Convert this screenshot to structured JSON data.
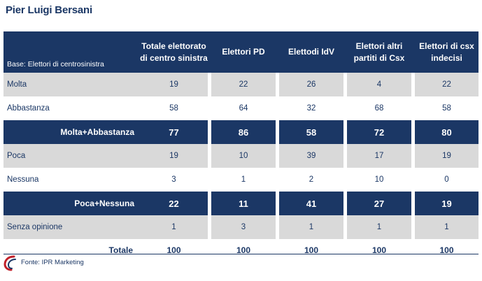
{
  "title": "Pier Luigi Bersani",
  "table": {
    "base_label": "Base: Elettori di centrosinistra",
    "columns": [
      {
        "line1": "Totale elettorato",
        "line2": "di centro sinistra"
      },
      {
        "line1": "Elettori PD",
        "line2": ""
      },
      {
        "line1": "Elettodi IdV",
        "line2": ""
      },
      {
        "line1": "Elettori altri",
        "line2": "partiti di Csx"
      },
      {
        "line1": "Elettori di csx",
        "line2": "indecisi"
      }
    ],
    "rows": [
      {
        "label": "Molta",
        "values": [
          "19",
          "22",
          "26",
          "4",
          "22"
        ]
      },
      {
        "label": "Abbastanza",
        "values": [
          "58",
          "64",
          "32",
          "68",
          "58"
        ]
      },
      {
        "label": "Molta+Abbastanza",
        "values": [
          "77",
          "86",
          "58",
          "72",
          "80"
        ]
      },
      {
        "label": "Poca",
        "values": [
          "19",
          "10",
          "39",
          "17",
          "19"
        ]
      },
      {
        "label": "Nessuna",
        "values": [
          "3",
          "1",
          "2",
          "10",
          "0"
        ]
      },
      {
        "label": "Poca+Nessuna",
        "values": [
          "22",
          "11",
          "41",
          "27",
          "19"
        ]
      },
      {
        "label": "Senza opinione",
        "values": [
          "1",
          "3",
          "1",
          "1",
          "1"
        ]
      },
      {
        "label": "Totale",
        "values": [
          "100",
          "100",
          "100",
          "100",
          "100"
        ]
      }
    ]
  },
  "source": "Fonte: IPR Marketing",
  "colors": {
    "navy": "#1b3765",
    "grey": "#d9d9d9",
    "logo_red": "#c0202a"
  }
}
